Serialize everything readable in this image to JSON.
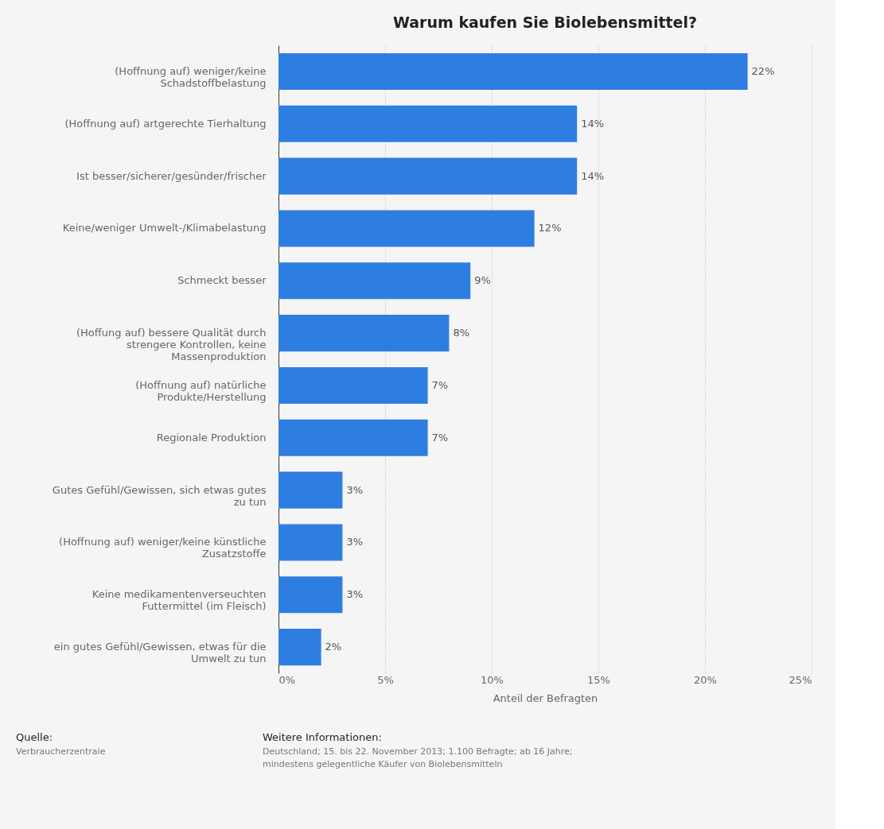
{
  "chart_data": {
    "type": "bar",
    "orientation": "horizontal",
    "title": "Warum kaufen Sie Biolebensmittel?",
    "xlabel": "Anteil der Befragten",
    "categories": [
      "(Hoffnung auf) weniger/keine Schadstoffbelastung",
      "(Hoffnung auf) artgerechte Tierhaltung",
      "Ist besser/sicherer/gesünder/frischer",
      "Keine/weniger Umwelt-/Klimabelastung",
      "Schmeckt besser",
      "(Hoffung auf) bessere Qualität durch strengere Kontrollen, keine Massenproduktion",
      "(Hoffnung auf) natürliche Produkte/Herstellung",
      "Regionale Produktion",
      "Gutes Gefühl/Gewissen, sich etwas gutes zu tun",
      "(Hoffnung auf) weniger/keine künstliche Zusatzstoffe",
      "Keine medikamentenverseuchten Futtermittel (im Fleisch)",
      "ein gutes Gefühl/Gewissen, etwas für die Umwelt zu tun"
    ],
    "values": [
      22,
      14,
      14,
      12,
      9,
      8,
      7,
      7,
      3,
      3,
      3,
      2
    ],
    "value_labels": [
      "22%",
      "14%",
      "14%",
      "12%",
      "9%",
      "8%",
      "7%",
      "7%",
      "3%",
      "3%",
      "3%",
      "2%"
    ],
    "color": "#2e7de1",
    "xlim": [
      0,
      25
    ],
    "xticks": [
      {
        "value": 0,
        "label": "0%"
      },
      {
        "value": 5,
        "label": "5%"
      },
      {
        "value": 10,
        "label": "10%"
      },
      {
        "value": 15,
        "label": "15%"
      },
      {
        "value": 20,
        "label": "20%"
      },
      {
        "value": 25,
        "label": "25%"
      }
    ],
    "grid": "x",
    "annotations": [
      "Quelle:",
      "Verbraucherzentrale",
      "Weitere Informationen:",
      "Deutschland; 15. bis 22. November 2013; 1.100 Befragte; ab 16 Jahre; mindestens gelegentliche Käufer von Biolebensmitteln"
    ]
  }
}
